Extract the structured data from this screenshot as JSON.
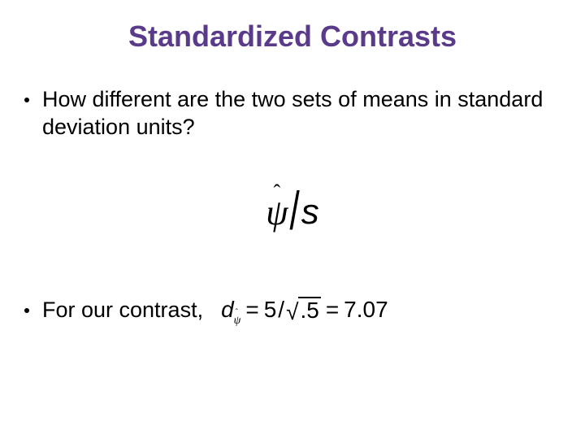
{
  "title": {
    "text": "Standardized Contrasts",
    "color": "#5a3b8a",
    "fontsize": 36
  },
  "bullets": {
    "b1": "How different are the two sets of means in standard deviation units?",
    "b2": "For our contrast,",
    "fontsize": 27,
    "color": "#000000"
  },
  "formula_main": {
    "psi": "ψ",
    "hat": "ˆ",
    "slash": "/",
    "s": "s",
    "fontsize": 44,
    "color": "#000000"
  },
  "formula_inline": {
    "d": "d",
    "sub_psi": "ψ",
    "sub_hat": "ˆ",
    "eq1": "=",
    "num": "5",
    "slash": "/",
    "radical": "√",
    "sqrt_arg": ".5",
    "eq2": "=",
    "result": "7.07",
    "fontsize": 28,
    "color": "#000000"
  },
  "background_color": "#ffffff"
}
